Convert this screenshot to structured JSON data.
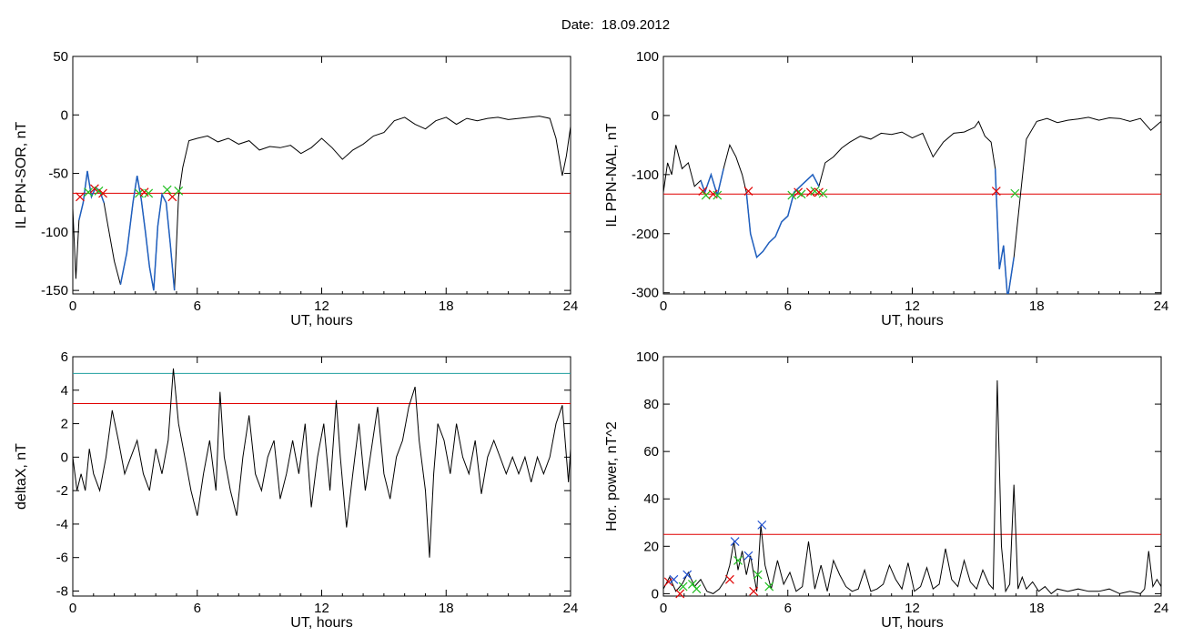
{
  "title": "Date:  18.09.2012",
  "colors": {
    "axis": "#000000",
    "trace": "#000000",
    "active": "#1f5fbf",
    "threshold": "#e00000",
    "threshold2": "#1f9f9f",
    "marker_red": "#e00000",
    "marker_green": "#20c020",
    "marker_blue": "#2050d0"
  },
  "chart_data": [
    {
      "id": "p1",
      "type": "line",
      "xlabel": "UT, hours",
      "ylabel": "IL PPN-SOR, nT",
      "xlim": [
        0,
        24
      ],
      "ylim": [
        -153,
        50
      ],
      "xticks": [
        0,
        6,
        12,
        18,
        24
      ],
      "yticks": [
        50,
        0,
        -50,
        -100,
        -150
      ],
      "thresholds": [
        {
          "y": -67,
          "color": "#e00000"
        }
      ],
      "x": [
        0,
        0.15,
        0.3,
        0.5,
        0.7,
        0.9,
        1.1,
        1.3,
        1.5,
        1.7,
        2.0,
        2.3,
        2.6,
        2.9,
        3.1,
        3.3,
        3.5,
        3.7,
        3.9,
        4.1,
        4.3,
        4.5,
        4.7,
        4.9,
        5.1,
        5.3,
        5.6,
        6,
        6.5,
        7,
        7.5,
        8,
        8.5,
        9,
        9.5,
        10,
        10.5,
        11,
        11.5,
        12,
        12.5,
        13,
        13.5,
        14,
        14.5,
        15,
        15.5,
        16,
        16.5,
        17,
        17.5,
        18,
        18.5,
        19,
        19.5,
        20,
        20.5,
        21,
        21.5,
        22,
        22.5,
        23,
        23.3,
        23.6,
        23.8,
        24
      ],
      "y": [
        -80,
        -140,
        -90,
        -75,
        -48,
        -70,
        -62,
        -65,
        -75,
        -95,
        -125,
        -145,
        -118,
        -75,
        -52,
        -72,
        -100,
        -130,
        -150,
        -95,
        -68,
        -75,
        -110,
        -150,
        -70,
        -45,
        -22,
        -20,
        -18,
        -23,
        -20,
        -25,
        -22,
        -30,
        -27,
        -28,
        -26,
        -33,
        -28,
        -20,
        -28,
        -38,
        -30,
        -25,
        -18,
        -15,
        -5,
        -2,
        -8,
        -12,
        -5,
        -2,
        -8,
        -3,
        -5,
        -3,
        -2,
        -4,
        -3,
        -2,
        -1,
        -3,
        -20,
        -52,
        -35,
        -10
      ],
      "highlights": [
        [
          0.3,
          1.6
        ],
        [
          2.1,
          4.9
        ]
      ],
      "markers": [
        {
          "x": 0.35,
          "y": -70,
          "c": "red"
        },
        {
          "x": 0.75,
          "y": -66,
          "c": "green"
        },
        {
          "x": 1.05,
          "y": -63,
          "c": "red"
        },
        {
          "x": 1.25,
          "y": -65,
          "c": "green"
        },
        {
          "x": 1.45,
          "y": -67,
          "c": "red"
        },
        {
          "x": 3.2,
          "y": -67,
          "c": "green"
        },
        {
          "x": 3.45,
          "y": -66,
          "c": "red"
        },
        {
          "x": 3.65,
          "y": -67,
          "c": "green"
        },
        {
          "x": 4.55,
          "y": -64,
          "c": "green"
        },
        {
          "x": 4.8,
          "y": -70,
          "c": "red"
        },
        {
          "x": 5.1,
          "y": -65,
          "c": "green"
        }
      ]
    },
    {
      "id": "p2",
      "type": "line",
      "xlabel": "UT, hours",
      "ylabel": "IL PPN-NAL, nT",
      "xlim": [
        0,
        24
      ],
      "ylim": [
        -302,
        100
      ],
      "xticks": [
        0,
        6,
        12,
        18,
        24
      ],
      "yticks": [
        100,
        0,
        -100,
        -200,
        -300
      ],
      "thresholds": [
        {
          "y": -133,
          "color": "#e00000"
        }
      ],
      "x": [
        0,
        0.2,
        0.4,
        0.6,
        0.9,
        1.2,
        1.5,
        1.8,
        2.0,
        2.3,
        2.6,
        2.9,
        3.2,
        3.5,
        3.8,
        4.0,
        4.2,
        4.5,
        4.8,
        5.1,
        5.4,
        5.7,
        6.0,
        6.3,
        6.6,
        6.9,
        7.2,
        7.5,
        7.8,
        8.2,
        8.6,
        9,
        9.5,
        10,
        10.5,
        11,
        11.5,
        12,
        12.5,
        13,
        13.5,
        14,
        14.5,
        15,
        15.2,
        15.5,
        15.8,
        16.0,
        16.2,
        16.4,
        16.6,
        16.9,
        17.2,
        17.5,
        18,
        18.5,
        19,
        19.5,
        20,
        20.5,
        21,
        21.5,
        22,
        22.5,
        23,
        23.5,
        24
      ],
      "y": [
        -130,
        -80,
        -100,
        -50,
        -90,
        -80,
        -120,
        -110,
        -130,
        -100,
        -135,
        -90,
        -50,
        -70,
        -100,
        -130,
        -200,
        -240,
        -230,
        -215,
        -205,
        -180,
        -170,
        -130,
        -120,
        -110,
        -100,
        -120,
        -80,
        -70,
        -55,
        -45,
        -35,
        -40,
        -30,
        -32,
        -28,
        -38,
        -30,
        -70,
        -45,
        -30,
        -28,
        -20,
        -10,
        -35,
        -45,
        -90,
        -260,
        -220,
        -310,
        -240,
        -140,
        -40,
        -10,
        -5,
        -12,
        -8,
        -6,
        -3,
        -8,
        -4,
        -5,
        -10,
        -5,
        -25,
        -10
      ],
      "highlights": [
        [
          1.8,
          2.9
        ],
        [
          4.0,
          7.7
        ],
        [
          16.0,
          17.0
        ]
      ],
      "markers": [
        {
          "x": 1.9,
          "y": -128,
          "c": "red"
        },
        {
          "x": 2.05,
          "y": -135,
          "c": "green"
        },
        {
          "x": 2.4,
          "y": -133,
          "c": "red"
        },
        {
          "x": 2.6,
          "y": -135,
          "c": "green"
        },
        {
          "x": 4.1,
          "y": -128,
          "c": "red"
        },
        {
          "x": 6.2,
          "y": -135,
          "c": "green"
        },
        {
          "x": 6.5,
          "y": -130,
          "c": "red"
        },
        {
          "x": 6.65,
          "y": -133,
          "c": "green"
        },
        {
          "x": 7.1,
          "y": -130,
          "c": "red"
        },
        {
          "x": 7.3,
          "y": -128,
          "c": "green"
        },
        {
          "x": 7.5,
          "y": -130,
          "c": "red"
        },
        {
          "x": 7.7,
          "y": -132,
          "c": "green"
        },
        {
          "x": 16.05,
          "y": -128,
          "c": "red"
        },
        {
          "x": 16.95,
          "y": -132,
          "c": "green"
        }
      ]
    },
    {
      "id": "p3",
      "type": "line",
      "xlabel": "UT, hours",
      "ylabel": "deltaX, nT",
      "xlim": [
        0,
        24
      ],
      "ylim": [
        -8.3,
        6
      ],
      "xticks": [
        0,
        6,
        12,
        18,
        24
      ],
      "yticks": [
        6,
        4,
        2,
        0,
        -2,
        -4,
        -6,
        -8
      ],
      "thresholds": [
        {
          "y": 5.0,
          "color": "#1f9f9f"
        },
        {
          "y": 3.2,
          "color": "#e00000"
        }
      ],
      "x": [
        0,
        0.2,
        0.4,
        0.6,
        0.8,
        1.0,
        1.3,
        1.6,
        1.9,
        2.2,
        2.5,
        2.8,
        3.1,
        3.4,
        3.7,
        4.0,
        4.3,
        4.6,
        4.85,
        5.1,
        5.4,
        5.7,
        6.0,
        6.3,
        6.6,
        6.9,
        7.1,
        7.3,
        7.6,
        7.9,
        8.2,
        8.5,
        8.8,
        9.1,
        9.4,
        9.7,
        10.0,
        10.3,
        10.6,
        10.9,
        11.2,
        11.5,
        11.8,
        12.1,
        12.4,
        12.7,
        12.9,
        13.2,
        13.5,
        13.8,
        14.1,
        14.4,
        14.7,
        15.0,
        15.3,
        15.6,
        15.9,
        16.2,
        16.5,
        16.7,
        17.0,
        17.2,
        17.4,
        17.6,
        17.9,
        18.2,
        18.5,
        18.8,
        19.1,
        19.4,
        19.7,
        20.0,
        20.3,
        20.6,
        20.9,
        21.2,
        21.5,
        21.8,
        22.1,
        22.4,
        22.7,
        23.0,
        23.3,
        23.6,
        23.9,
        24
      ],
      "y": [
        0,
        -2,
        -1,
        -2,
        0.5,
        -1,
        -2,
        0,
        2.8,
        1,
        -1,
        0,
        1,
        -1,
        -2,
        0.5,
        -1,
        1,
        5.3,
        2,
        0,
        -2,
        -3.5,
        -1,
        1,
        -2,
        3.9,
        0,
        -2,
        -3.5,
        0,
        2.5,
        -1,
        -2,
        0,
        1,
        -2.5,
        -1,
        1,
        -1,
        2,
        -3,
        0,
        2,
        -2,
        3.4,
        0,
        -4.2,
        -1,
        2,
        -2,
        0.5,
        3,
        -1,
        -2.5,
        0,
        1,
        3,
        4.2,
        1,
        -2,
        -6,
        -1,
        2,
        1,
        -1,
        2,
        0,
        -1,
        1,
        -2.2,
        0,
        1,
        0,
        -1,
        0,
        -1,
        0,
        -1.5,
        0,
        -1,
        0,
        2,
        3.1,
        -1.5,
        0.5
      ],
      "highlights": [],
      "markers": []
    },
    {
      "id": "p4",
      "type": "line",
      "xlabel": "UT, hours",
      "ylabel": "Hor. power, nT^2",
      "xlim": [
        0,
        24
      ],
      "ylim": [
        -1,
        100
      ],
      "xticks": [
        0,
        6,
        12,
        18,
        24
      ],
      "yticks": [
        100,
        80,
        60,
        40,
        20,
        0
      ],
      "thresholds": [
        {
          "y": 25,
          "color": "#e00000"
        }
      ],
      "x": [
        0,
        0.3,
        0.6,
        0.9,
        1.2,
        1.5,
        1.8,
        2.1,
        2.4,
        2.7,
        3.0,
        3.2,
        3.4,
        3.6,
        3.8,
        4.0,
        4.2,
        4.5,
        4.7,
        4.9,
        5.2,
        5.5,
        5.8,
        6.1,
        6.4,
        6.7,
        7.0,
        7.3,
        7.6,
        7.9,
        8.2,
        8.5,
        8.8,
        9.1,
        9.4,
        9.7,
        10.0,
        10.3,
        10.6,
        10.9,
        11.2,
        11.5,
        11.8,
        12.1,
        12.4,
        12.7,
        13.0,
        13.3,
        13.6,
        13.9,
        14.2,
        14.5,
        14.8,
        15.1,
        15.4,
        15.7,
        15.9,
        16.1,
        16.3,
        16.5,
        16.7,
        16.9,
        17.1,
        17.3,
        17.5,
        17.8,
        18.1,
        18.4,
        18.7,
        19,
        19.5,
        20,
        20.5,
        21,
        21.5,
        22,
        22.5,
        23,
        23.2,
        23.4,
        23.6,
        23.8,
        24
      ],
      "y": [
        2,
        7,
        1,
        4,
        9,
        3,
        6,
        1,
        0,
        2,
        6,
        12,
        22,
        10,
        18,
        8,
        16,
        1,
        29,
        12,
        2,
        14,
        4,
        9,
        1,
        3,
        22,
        2,
        12,
        1,
        14,
        8,
        3,
        1,
        2,
        10,
        1,
        2,
        4,
        12,
        6,
        2,
        13,
        1,
        3,
        11,
        2,
        4,
        19,
        6,
        3,
        14,
        5,
        2,
        10,
        4,
        2,
        90,
        20,
        1,
        4,
        46,
        2,
        7,
        2,
        5,
        1,
        3,
        0,
        2,
        1,
        2,
        1,
        1,
        2,
        0,
        1,
        0,
        2,
        18,
        3,
        6,
        3
      ],
      "highlights": [],
      "markers": [
        {
          "x": 0.25,
          "y": 5,
          "c": "red"
        },
        {
          "x": 0.5,
          "y": 6,
          "c": "blue"
        },
        {
          "x": 0.8,
          "y": 0,
          "c": "red"
        },
        {
          "x": 0.95,
          "y": 3,
          "c": "green"
        },
        {
          "x": 1.15,
          "y": 8,
          "c": "blue"
        },
        {
          "x": 1.4,
          "y": 4,
          "c": "green"
        },
        {
          "x": 1.6,
          "y": 2,
          "c": "green"
        },
        {
          "x": 3.2,
          "y": 6,
          "c": "red"
        },
        {
          "x": 3.45,
          "y": 22,
          "c": "blue"
        },
        {
          "x": 3.6,
          "y": 14,
          "c": "green"
        },
        {
          "x": 4.1,
          "y": 16,
          "c": "blue"
        },
        {
          "x": 4.35,
          "y": 1,
          "c": "red"
        },
        {
          "x": 4.55,
          "y": 8,
          "c": "green"
        },
        {
          "x": 4.75,
          "y": 29,
          "c": "blue"
        },
        {
          "x": 5.1,
          "y": 3,
          "c": "green"
        }
      ]
    }
  ]
}
